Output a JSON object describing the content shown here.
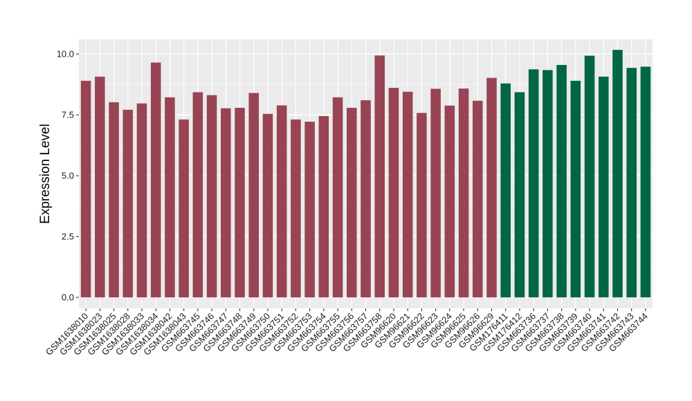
{
  "chart_data": {
    "type": "bar",
    "title": "",
    "xlabel": "",
    "ylabel": "Expression Level",
    "ylim": [
      -0.45,
      10.6
    ],
    "yticks": [
      0.0,
      2.5,
      5.0,
      7.5,
      10.0
    ],
    "ytick_labels": [
      "0.0",
      "2.5",
      "5.0",
      "7.5",
      "10.0"
    ],
    "grid": true,
    "legend": "none",
    "panel_background": "#ebebeb",
    "grid_color": "#ffffff",
    "categories": [
      "GSM1638010",
      "GSM1638023",
      "GSM1638025",
      "GSM1638028",
      "GSM1638033",
      "GSM1638034",
      "GSM1638042",
      "GSM1638043",
      "GSM663745",
      "GSM663746",
      "GSM663747",
      "GSM663748",
      "GSM663749",
      "GSM663750",
      "GSM663751",
      "GSM663752",
      "GSM663753",
      "GSM663754",
      "GSM663755",
      "GSM663756",
      "GSM663757",
      "GSM663758",
      "GSM96620",
      "GSM96621",
      "GSM96622",
      "GSM96623",
      "GSM96624",
      "GSM96625",
      "GSM96626",
      "GSM96629",
      "GSM176411",
      "GSM176412",
      "GSM663736",
      "GSM663737",
      "GSM663738",
      "GSM663739",
      "GSM663740",
      "GSM663741",
      "GSM663742",
      "GSM663743",
      "GSM663744"
    ],
    "values": [
      8.9,
      9.07,
      8.02,
      7.71,
      7.97,
      9.65,
      8.22,
      7.31,
      8.43,
      8.31,
      7.77,
      7.79,
      8.4,
      7.54,
      7.89,
      7.31,
      7.22,
      7.45,
      8.22,
      7.79,
      8.1,
      9.94,
      8.61,
      8.45,
      7.58,
      8.57,
      7.88,
      8.58,
      8.08,
      9.02,
      8.79,
      8.43,
      9.37,
      9.34,
      9.55,
      8.9,
      9.93,
      9.07,
      10.17,
      9.43,
      9.48
    ],
    "colors": [
      "#994455",
      "#994455",
      "#994455",
      "#994455",
      "#994455",
      "#994455",
      "#994455",
      "#994455",
      "#994455",
      "#994455",
      "#994455",
      "#994455",
      "#994455",
      "#994455",
      "#994455",
      "#994455",
      "#994455",
      "#994455",
      "#994455",
      "#994455",
      "#994455",
      "#994455",
      "#994455",
      "#994455",
      "#994455",
      "#994455",
      "#994455",
      "#994455",
      "#994455",
      "#994455",
      "#006644",
      "#006644",
      "#006644",
      "#006644",
      "#006644",
      "#006644",
      "#006644",
      "#006644",
      "#006644",
      "#006644",
      "#006644"
    ]
  }
}
